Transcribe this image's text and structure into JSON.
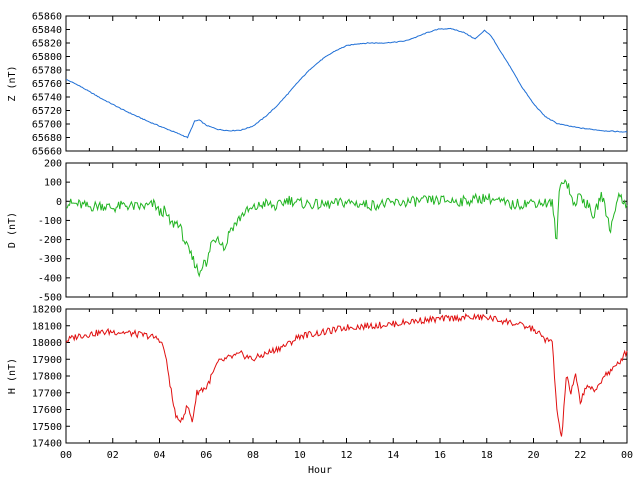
{
  "chart_data": [
    {
      "type": "line",
      "ylabel": "Z (nT)",
      "ylim": [
        65660,
        65860
      ],
      "yticks": [
        65660,
        65680,
        65700,
        65720,
        65740,
        65760,
        65780,
        65800,
        65820,
        65840,
        65860
      ],
      "xlim": [
        0,
        24
      ],
      "color": "#1f6fd6",
      "series": [
        {
          "x": [
            0,
            0.5,
            1,
            1.5,
            2,
            2.5,
            3,
            3.5,
            4,
            4.5,
            5.0,
            5.2,
            5.5,
            5.7,
            6.0,
            6.5,
            7.0,
            7.5,
            8.0,
            8.5,
            9.0,
            9.5,
            10.0,
            10.5,
            11.0,
            11.5,
            12.0,
            12.5,
            13.0,
            13.5,
            14.0,
            14.5,
            15.0,
            15.5,
            16.0,
            16.5,
            17.0,
            17.3,
            17.5,
            17.7,
            17.9,
            18.2,
            18.5,
            19.0,
            19.5,
            20.0,
            20.5,
            21.0,
            21.5,
            22.0,
            22.5,
            23.0,
            23.5,
            24.0
          ],
          "values": [
            65766,
            65758,
            65748,
            65738,
            65729,
            65720,
            65712,
            65704,
            65697,
            65690,
            65683,
            65680,
            65704,
            65706,
            65698,
            65692,
            65690,
            65691,
            65697,
            65710,
            65726,
            65745,
            65765,
            65783,
            65797,
            65808,
            65816,
            65819,
            65820,
            65820,
            65821,
            65823,
            65829,
            65836,
            65841,
            65841,
            65836,
            65830,
            65826,
            65832,
            65839,
            65830,
            65812,
            65785,
            65755,
            65730,
            65711,
            65701,
            65697,
            65694,
            65692,
            65690,
            65689,
            65688
          ]
        }
      ]
    },
    {
      "type": "line",
      "ylabel": "D (nT)",
      "ylim": [
        -500,
        200
      ],
      "yticks": [
        -500,
        -400,
        -300,
        -200,
        -100,
        0,
        100,
        200
      ],
      "xlim": [
        0,
        24
      ],
      "color": "#22b422",
      "series": [
        {
          "x": [
            0,
            0.5,
            1,
            1.5,
            2,
            2.5,
            3,
            3.5,
            3.8,
            4.0,
            4.2,
            4.5,
            4.8,
            5.0,
            5.2,
            5.5,
            5.7,
            5.9,
            6.0,
            6.2,
            6.5,
            6.8,
            7.0,
            7.3,
            7.6,
            8.0,
            8.5,
            9.0,
            9.5,
            10.0,
            11.0,
            12.0,
            13.0,
            14.0,
            15.0,
            16.0,
            17.0,
            18.0,
            19.0,
            20.0,
            20.8,
            21.0,
            21.1,
            21.3,
            21.5,
            21.7,
            22.0,
            22.3,
            22.6,
            22.9,
            23.3,
            23.6,
            24.0
          ],
          "values": [
            -10,
            -15,
            -30,
            -20,
            -35,
            -20,
            -30,
            -25,
            -15,
            -60,
            -50,
            -120,
            -110,
            -180,
            -250,
            -320,
            -380,
            -300,
            -350,
            -220,
            -180,
            -250,
            -150,
            -110,
            -60,
            -40,
            -10,
            -30,
            10,
            -10,
            -20,
            -5,
            -20,
            -10,
            0,
            5,
            0,
            20,
            -20,
            -5,
            -10,
            -220,
            60,
            120,
            80,
            -20,
            30,
            -20,
            -80,
            40,
            -150,
            30,
            -20
          ]
        }
      ]
    },
    {
      "type": "line",
      "xlabel": "Hour",
      "ylabel": "H (nT)",
      "ylim": [
        17400,
        18200
      ],
      "yticks": [
        17400,
        17500,
        17600,
        17700,
        17800,
        17900,
        18000,
        18100,
        18200
      ],
      "xlim": [
        0,
        24
      ],
      "xticks": [
        "00",
        "02",
        "04",
        "06",
        "08",
        "10",
        "12",
        "14",
        "16",
        "18",
        "20",
        "22",
        "00"
      ],
      "color": "#e01010",
      "series": [
        {
          "x": [
            0,
            0.5,
            1,
            1.5,
            2,
            2.5,
            3,
            3.5,
            4.0,
            4.2,
            4.4,
            4.6,
            4.8,
            5.0,
            5.2,
            5.4,
            5.6,
            5.8,
            6.0,
            6.2,
            6.5,
            7.0,
            7.5,
            8.0,
            8.5,
            9.0,
            9.5,
            10.0,
            11.0,
            12.0,
            13.0,
            14.0,
            15.0,
            16.0,
            17.0,
            18.0,
            19.0,
            20.0,
            20.5,
            20.8,
            21.0,
            21.2,
            21.4,
            21.6,
            21.8,
            22.0,
            22.3,
            22.6,
            23.0,
            23.5,
            24.0
          ],
          "values": [
            18010,
            18040,
            18050,
            18060,
            18065,
            18060,
            18050,
            18040,
            18020,
            17960,
            17800,
            17620,
            17520,
            17560,
            17620,
            17530,
            17700,
            17720,
            17730,
            17790,
            17880,
            17910,
            17930,
            17900,
            17930,
            17960,
            17990,
            18040,
            18060,
            18090,
            18100,
            18110,
            18130,
            18140,
            18150,
            18150,
            18120,
            18080,
            18020,
            18000,
            17600,
            17420,
            17800,
            17700,
            17800,
            17650,
            17750,
            17700,
            17800,
            17850,
            17950
          ]
        }
      ]
    }
  ]
}
